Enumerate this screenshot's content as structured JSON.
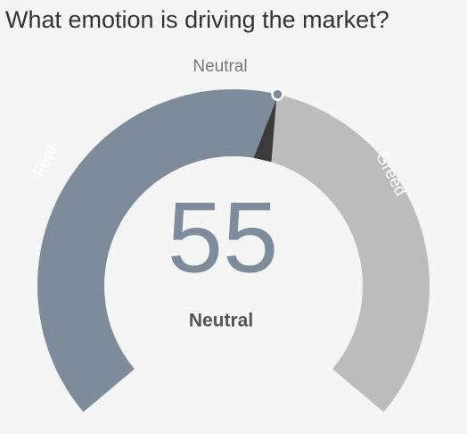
{
  "chart_data": {
    "type": "gauge",
    "title": "What emotion is driving the market?",
    "value": 55,
    "rating": "Neutral",
    "pointer_label": "Neutral",
    "categories": [
      "Fear",
      "Greed"
    ],
    "colors": [
      "#7d8c9c",
      "#bcbcbc"
    ],
    "ylim": [
      0,
      100
    ]
  }
}
